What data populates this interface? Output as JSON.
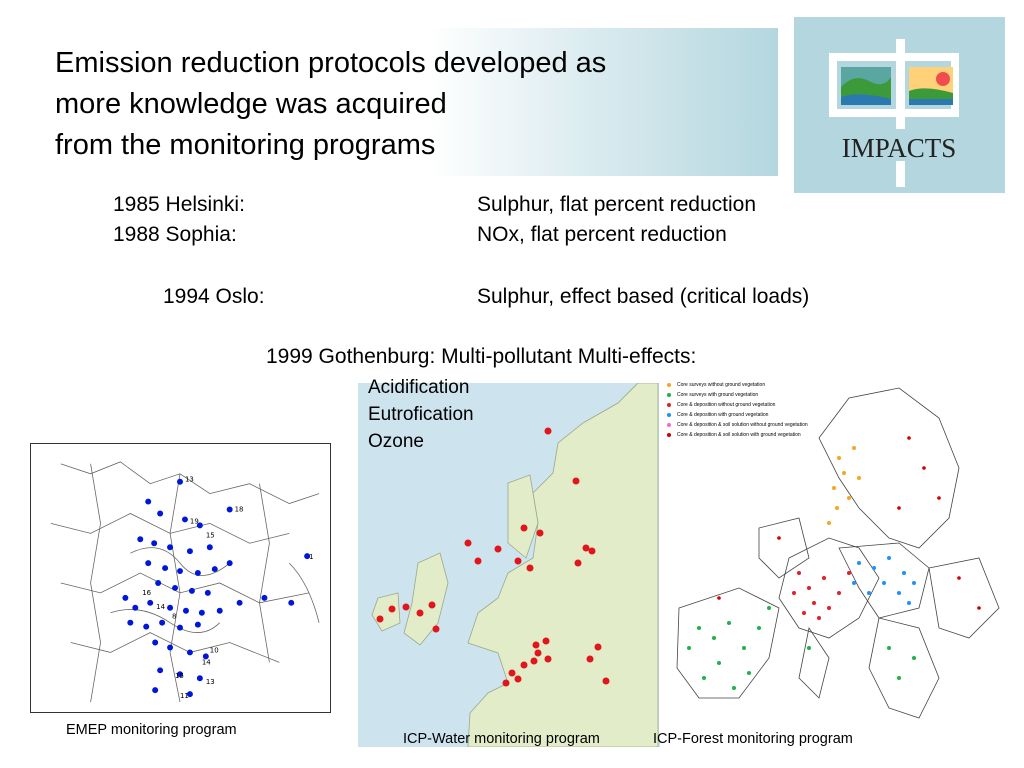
{
  "slide": {
    "title_lines": [
      "Emission reduction protocols developed as",
      "more knowledge was acquired",
      "from the monitoring programs"
    ],
    "logo_text": "IMPACTS",
    "protocols": [
      {
        "place": "1985 Helsinki:",
        "scope": "Sulphur, flat percent reduction"
      },
      {
        "place": "1988 Sophia:",
        "scope": "NOx, flat percent reduction"
      },
      {
        "place": "1994 Oslo:",
        "scope": "Sulphur, effect based (critical loads)"
      },
      {
        "place": "1999 Gothenburg: Multi-pollutant Multi-effects:"
      }
    ],
    "effects": [
      "Acidification",
      "Eutrofication",
      "Ozone"
    ],
    "maps": {
      "emep": {
        "caption": "EMEP monitoring program",
        "station_labels": [
          "13",
          "18",
          "19",
          "15",
          "1",
          "16",
          "14",
          "8",
          "10",
          "14",
          "15",
          "11",
          "13"
        ]
      },
      "icp_water": {
        "caption": "ICP-Water monitoring program"
      },
      "icp_forest": {
        "caption": "ICP-Forest monitoring program",
        "legend": [
          {
            "label": "Core surveys without ground vegetation",
            "color": "#f5a623"
          },
          {
            "label": "Core surveys with ground vegetation",
            "color": "#22b04b"
          },
          {
            "label": "Core & deposition without ground vegetation",
            "color": "#e0202a"
          },
          {
            "label": "Core & deposition with ground vegetation",
            "color": "#1e90ff"
          },
          {
            "label": "Core & deposition & soil solution without ground vegetation",
            "color": "#ff66cc"
          },
          {
            "label": "Core & deposition & soil solution with ground vegetation",
            "color": "#cc0000"
          }
        ]
      }
    }
  }
}
